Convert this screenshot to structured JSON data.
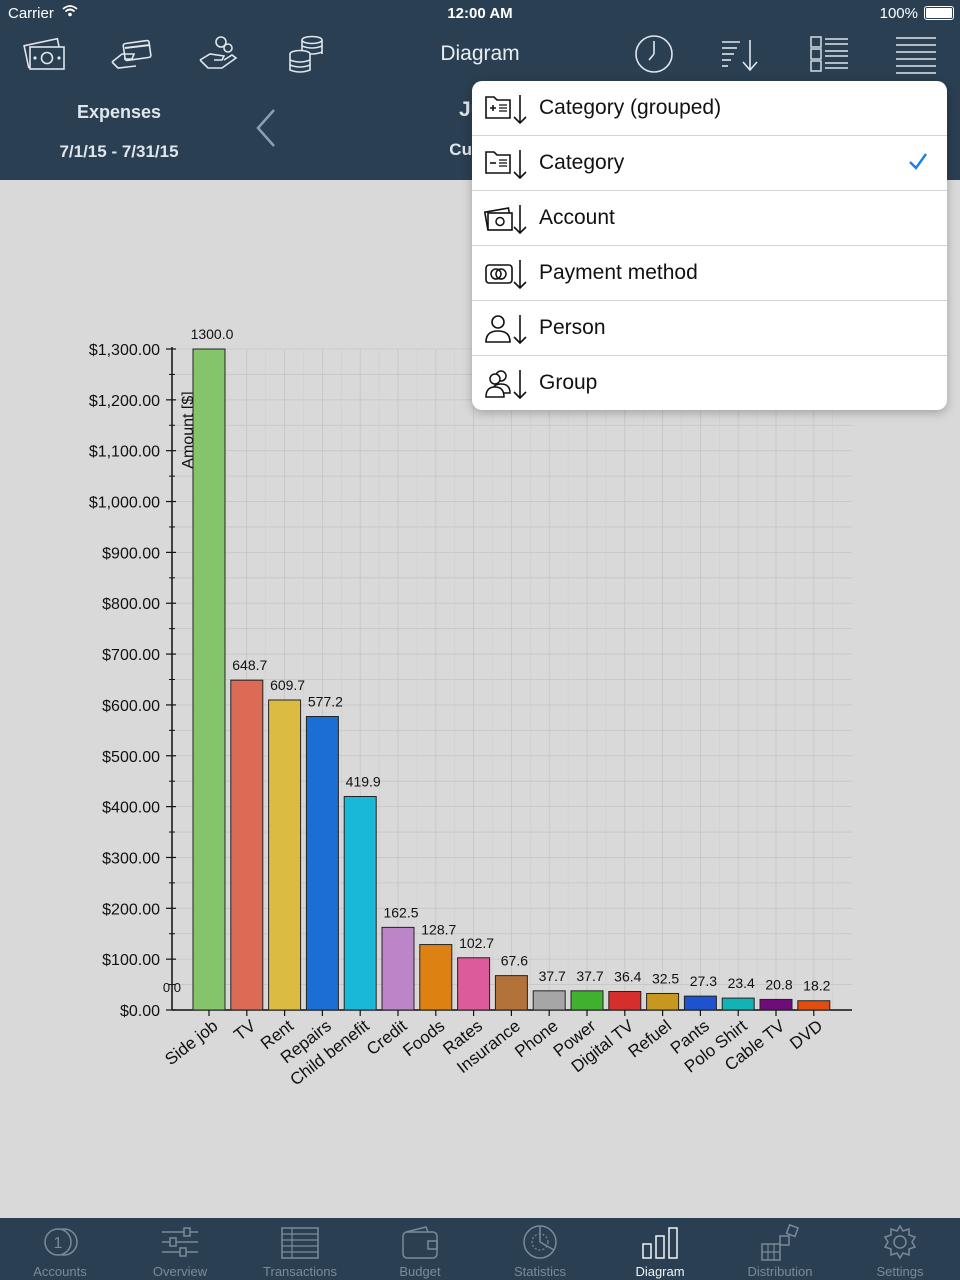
{
  "status_bar": {
    "carrier": "Carrier",
    "time": "12:00 AM",
    "battery": "100%"
  },
  "navbar": {
    "title": "Diagram",
    "period_type": "Expenses",
    "period_range": "7/1/15 - 7/31/15",
    "month": "July",
    "month_sub": "Current"
  },
  "sort_menu": {
    "items": [
      {
        "label": "Category (grouped)",
        "icon": "category-grouped-sort-icon",
        "selected": false
      },
      {
        "label": "Category",
        "icon": "category-sort-icon",
        "selected": true
      },
      {
        "label": "Account",
        "icon": "account-sort-icon",
        "selected": false
      },
      {
        "label": "Payment method",
        "icon": "payment-method-sort-icon",
        "selected": false
      },
      {
        "label": "Person",
        "icon": "person-sort-icon",
        "selected": false
      },
      {
        "label": "Group",
        "icon": "group-sort-icon",
        "selected": false
      }
    ],
    "check_color": "#1a7fe8"
  },
  "chart_data": {
    "type": "bar",
    "ylabel": "Amount [$]",
    "ylim": [
      0,
      1300
    ],
    "yticks": [
      "$0.00",
      "$100.00",
      "$200.00",
      "$300.00",
      "$400.00",
      "$500.00",
      "$600.00",
      "$700.00",
      "$800.00",
      "$900.00",
      "$1,000.00",
      "$1,100.00",
      "$1,200.00",
      "$1,300.00"
    ],
    "origin_label": "0.0",
    "grid": true,
    "categories": [
      "Side job",
      "TV",
      "Rent",
      "Repairs",
      "Child benefit",
      "Credit",
      "Foods",
      "Rates",
      "Insurance",
      "Phone",
      "Power",
      "Digital TV",
      "Refuel",
      "Pants",
      "Polo Shirt",
      "Cable TV",
      "DVD"
    ],
    "values": [
      1300.0,
      648.7,
      609.7,
      577.2,
      419.9,
      162.5,
      128.7,
      102.7,
      67.6,
      37.7,
      37.7,
      36.4,
      32.5,
      27.3,
      23.4,
      20.8,
      18.2
    ],
    "value_labels": [
      "1300.0",
      "648.7",
      "609.7",
      "577.2",
      "419.9",
      "162.5",
      "128.7",
      "102.7",
      "67.6",
      "37.7",
      "37.7",
      "36.4",
      "32.5",
      "27.3",
      "23.4",
      "20.8",
      "18.2"
    ],
    "colors": [
      "#84c56c",
      "#dc6b55",
      "#dbbb42",
      "#1b6fd4",
      "#1ab8d8",
      "#bb85c8",
      "#dd8212",
      "#dc5b9b",
      "#b2723a",
      "#a6a6a6",
      "#3fb12f",
      "#d62d2d",
      "#c6981f",
      "#1f52cf",
      "#13b2b4",
      "#6e0d78",
      "#e34d10"
    ]
  },
  "tabs": [
    {
      "label": "Accounts",
      "icon": "accounts-icon",
      "active": false
    },
    {
      "label": "Overview",
      "icon": "overview-icon",
      "active": false
    },
    {
      "label": "Transactions",
      "icon": "transactions-icon",
      "active": false
    },
    {
      "label": "Budget",
      "icon": "budget-icon",
      "active": false
    },
    {
      "label": "Statistics",
      "icon": "statistics-icon",
      "active": false
    },
    {
      "label": "Diagram",
      "icon": "diagram-icon",
      "active": true
    },
    {
      "label": "Distribution",
      "icon": "distribution-icon",
      "active": false
    },
    {
      "label": "Settings",
      "icon": "settings-icon",
      "active": false
    }
  ]
}
